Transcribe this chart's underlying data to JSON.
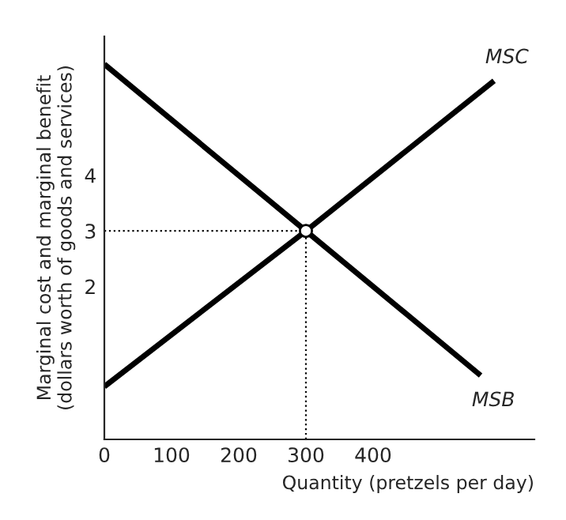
{
  "chart_data": {
    "type": "line",
    "xlabel": "Quantity (pretzels per day)",
    "ylabel": "Marginal cost and marginal benefit\n(dollars worth of goods and services)",
    "series": [
      {
        "name": "MSC",
        "color": "#000000",
        "x": [
          0,
          300,
          580
        ],
        "values": [
          0.2,
          3,
          5.7
        ]
      },
      {
        "name": "MSB",
        "color": "#000000",
        "x": [
          0,
          300,
          560
        ],
        "values": [
          6,
          3,
          0.4
        ]
      },
      {
        "type": "scatter",
        "marker": "circle",
        "color": "#ffffff",
        "x": [
          300
        ],
        "values": [
          3
        ]
      }
    ],
    "xlim": [
      0,
      640
    ],
    "ylim": [
      -0.75,
      6.5
    ],
    "xticks": [
      0,
      100,
      200,
      300,
      400
    ],
    "yticks": [
      2,
      3,
      4
    ],
    "ref_lines": [
      {
        "axis": "x",
        "value": 300,
        "line_style": "dotted"
      },
      {
        "axis": "y",
        "value": 3,
        "line_style": "dotted"
      }
    ],
    "grid": false,
    "legend": false,
    "marker": "none",
    "line_style": "solid"
  }
}
